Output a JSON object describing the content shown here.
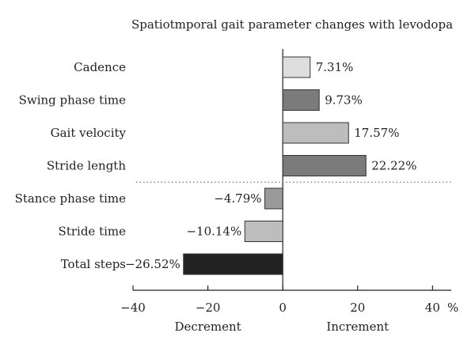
{
  "chart_data": {
    "type": "bar",
    "orientation": "horizontal",
    "title": "Spatiotmporal gait parameter changes with levodopa",
    "categories": [
      "Cadence",
      "Swing phase time",
      "Gait velocity",
      "Stride length",
      "Stance phase time",
      "Stride time",
      "Total steps"
    ],
    "values": [
      7.31,
      9.73,
      17.57,
      22.22,
      -4.79,
      -10.14,
      -26.52
    ],
    "value_labels": [
      "7.31%",
      "9.73%",
      "17.57%",
      "22.22%",
      "−4.79%",
      "−10.14%",
      "−26.52%"
    ],
    "bar_colors": [
      "#dedede",
      "#7b7b7b",
      "#bdbdbd",
      "#7b7b7b",
      "#9a9a9a",
      "#bdbdbd",
      "#222222"
    ],
    "xlim": [
      -40,
      45
    ],
    "x_ticks": [
      -40,
      -20,
      0,
      20,
      40
    ],
    "x_tick_labels": [
      "−40",
      "−20",
      "0",
      "20",
      "40"
    ],
    "x_unit": "%",
    "x_direction_labels": {
      "negative": "Decrement",
      "positive": "Increment"
    },
    "separator_after_category": "Stride length",
    "grid": false,
    "legend": false
  }
}
